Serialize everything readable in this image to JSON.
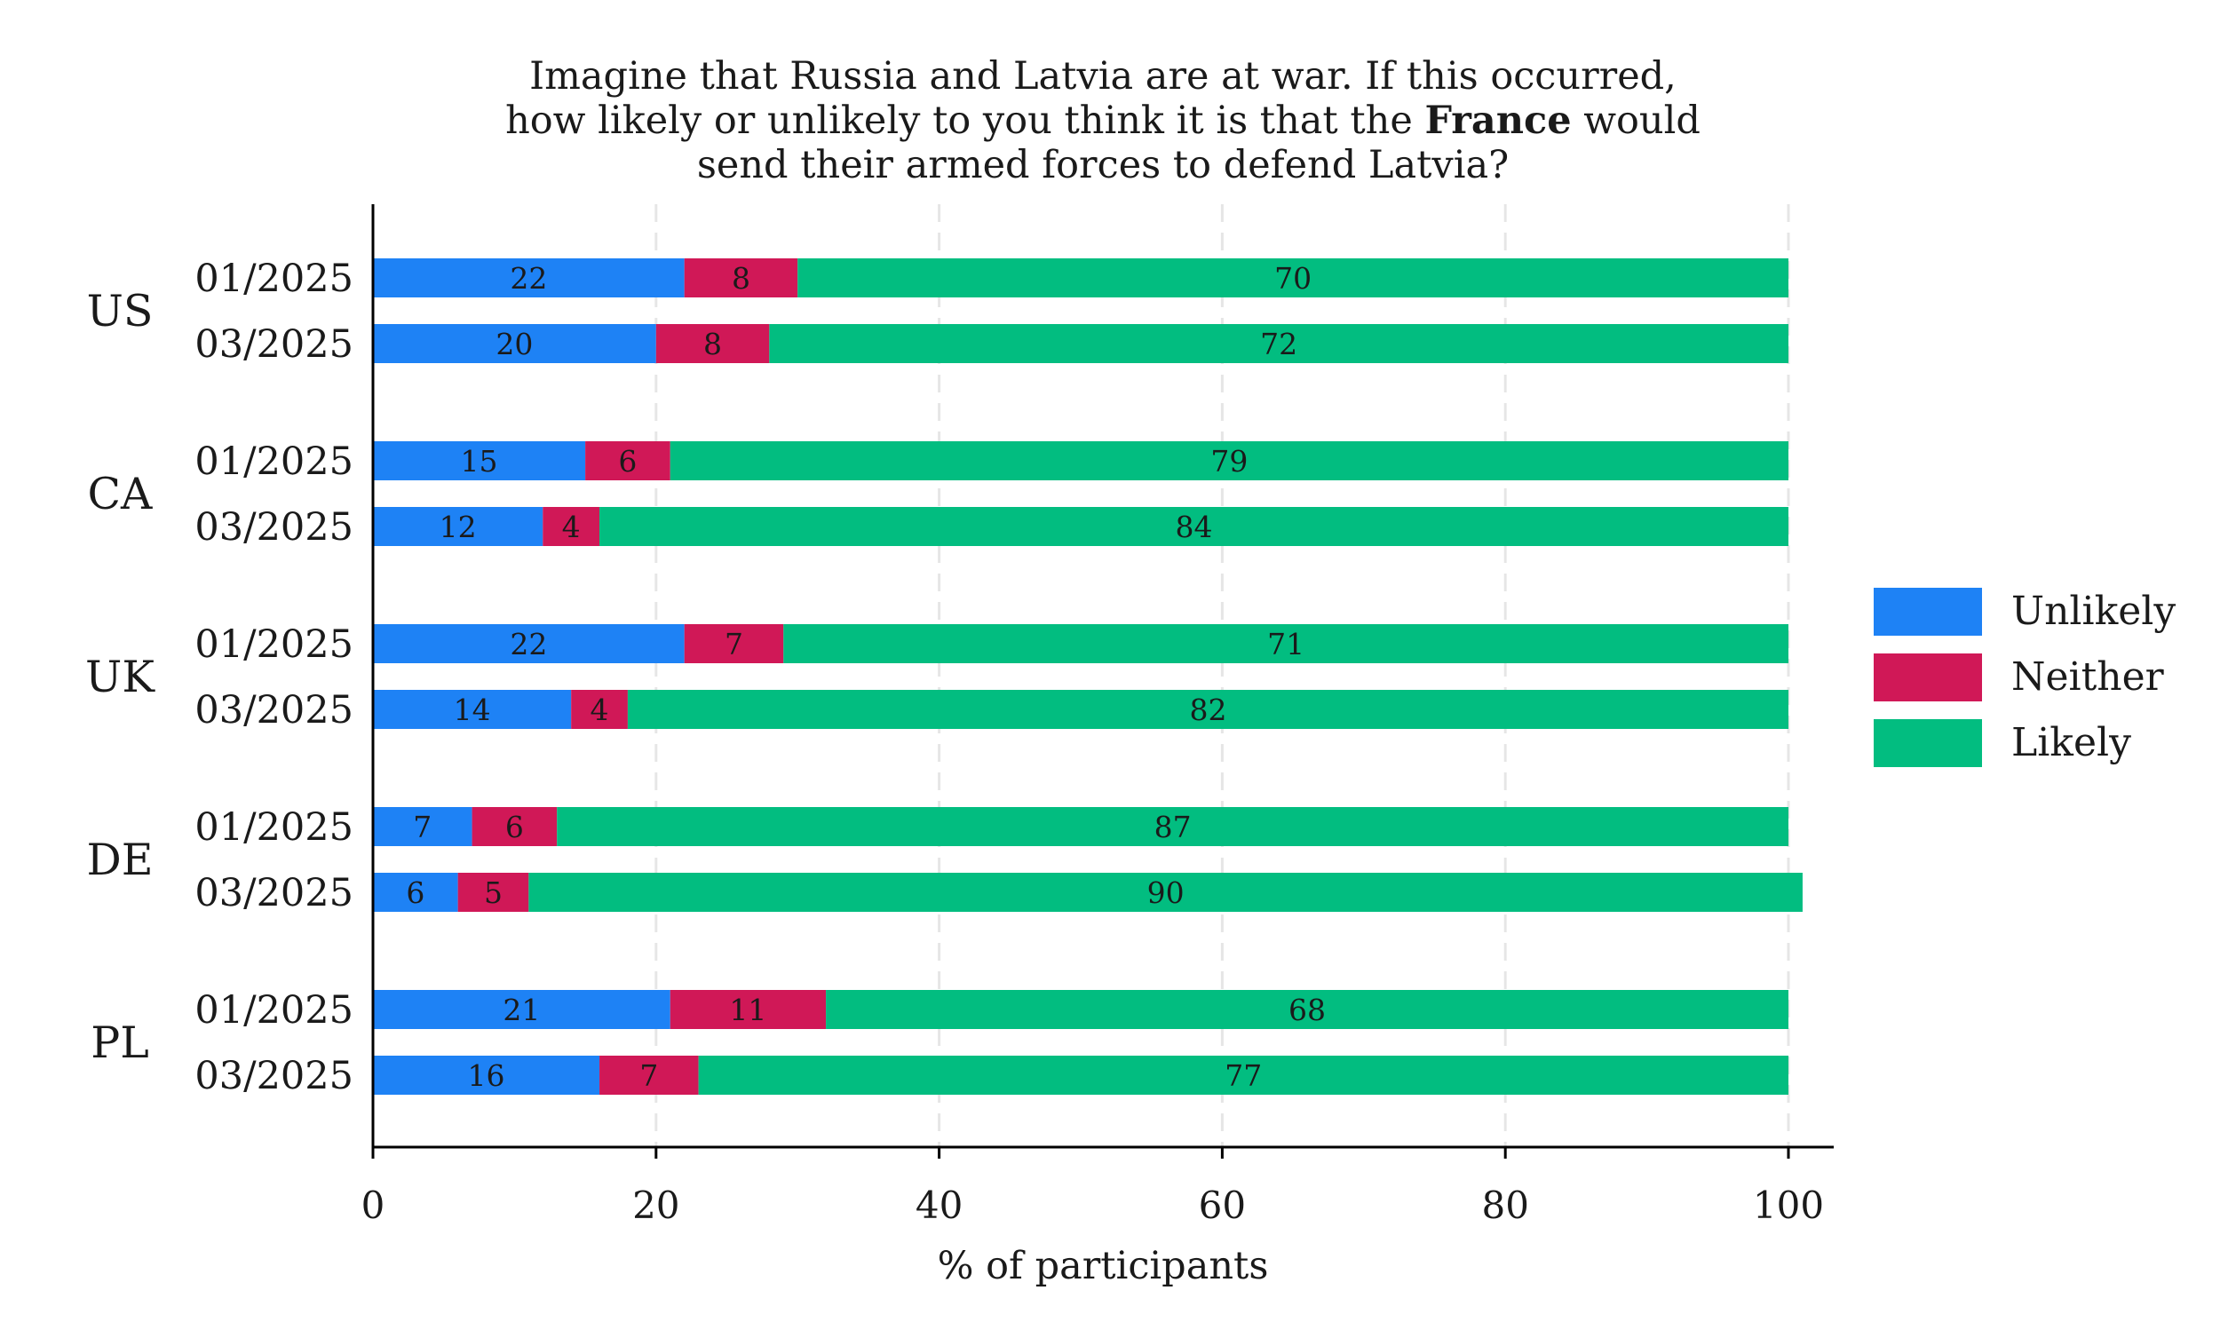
{
  "chart_data": {
    "type": "bar",
    "orientation": "horizontal",
    "stacked": true,
    "title_lines": [
      {
        "pre": "Imagine that Russia and Latvia are at war. If this occurred,",
        "bold": "",
        "post": ""
      },
      {
        "pre": "how likely or unlikely to you think it is that the ",
        "bold": "France",
        "post": " would"
      },
      {
        "pre": "send their armed forces to defend Latvia?",
        "bold": "",
        "post": ""
      }
    ],
    "xlabel": "% of participants",
    "ylabel": "",
    "xlim": [
      0,
      100
    ],
    "xticks": [
      0,
      20,
      40,
      60,
      80,
      100
    ],
    "grid": "vertical dashed",
    "legend_position": "right",
    "groups": [
      "US",
      "CA",
      "UK",
      "DE",
      "PL"
    ],
    "rows": [
      "01/2025",
      "03/2025"
    ],
    "series": [
      {
        "name": "Unlikely",
        "color": "#1e82f5",
        "values": [
          [
            22,
            20
          ],
          [
            15,
            12
          ],
          [
            22,
            14
          ],
          [
            7,
            6
          ],
          [
            21,
            16
          ]
        ]
      },
      {
        "name": "Neither",
        "color": "#d01857",
        "values": [
          [
            8,
            8
          ],
          [
            6,
            4
          ],
          [
            7,
            4
          ],
          [
            6,
            5
          ],
          [
            11,
            7
          ]
        ]
      },
      {
        "name": "Likely",
        "color": "#02bd80",
        "values": [
          [
            70,
            72
          ],
          [
            79,
            84
          ],
          [
            71,
            82
          ],
          [
            87,
            90
          ],
          [
            68,
            77
          ]
        ]
      }
    ]
  }
}
